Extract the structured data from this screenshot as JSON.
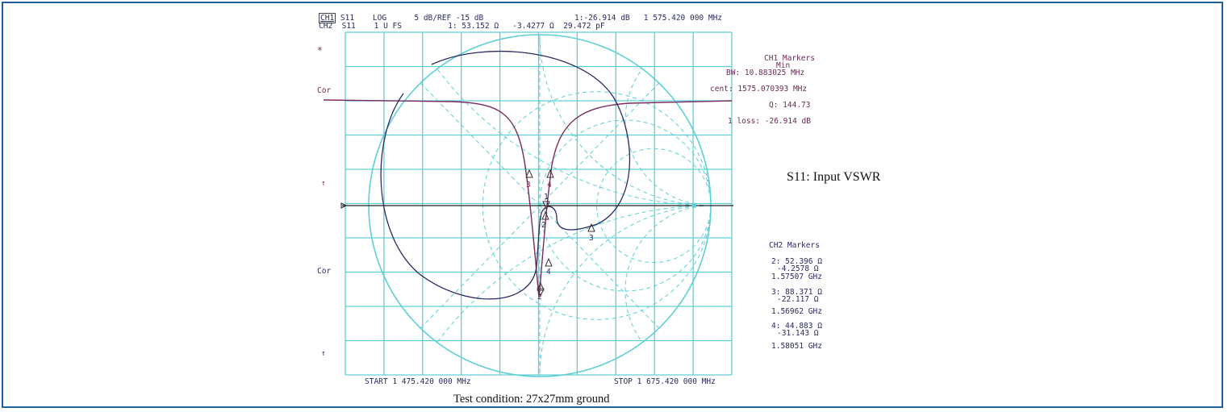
{
  "header": {
    "ch1": "CH1",
    "ch1_rest": " S11    LOG      5 dB/REF -15 dB",
    "ch1_marker": "1:-26.914 dB   1 575.420 000 MHz",
    "ch2_line": "CH2  S11    1 U FS          1: 53.152 Ω   -3.4277 Ω  29.472 pF"
  },
  "left_labels": {
    "star": "*",
    "cor1": "Cor",
    "arrow1": "↑",
    "cor2": "Cor",
    "arrow2": "↑"
  },
  "ch1_markers": {
    "title": "CH1 Markers",
    "subtitle": "Min",
    "bw": "BW: 10.883025 MHz",
    "cent": "cent: 1575.070393 MHz",
    "q": "Q: 144.73",
    "loss": "1 loss: -26.914 dB"
  },
  "ch2_markers": {
    "title": "CH2 Markers",
    "m2a": "2: 52.396 Ω",
    "m2b": "-4.2578 Ω",
    "m2c": "1.57507 GHz",
    "m3a": "3: 88.371 Ω",
    "m3b": "-22.117 Ω",
    "m3c": "1.56962 GHz",
    "m4a": "4: 44.883 Ω",
    "m4b": "-31.143 Ω",
    "m4c": "1.58051 GHz"
  },
  "footer": {
    "start": "START 1 475.420 000 MHz",
    "stop": "STOP 1 675.420 000 MHz"
  },
  "annotation": "S11: Input VSWR",
  "caption": "Test condition: 27x27mm ground",
  "marker_labels": {
    "m1": "1",
    "m2": "2",
    "m3": "3",
    "m4": "4"
  },
  "colors": {
    "frame": "#1f5f9a",
    "grid": "#5fcfd6",
    "smith": "#5fcfd6",
    "trace_log": "#7a2a60",
    "trace_smith": "#2a2a60",
    "axis": "#222222"
  },
  "chart_data": {
    "type": "line",
    "title": "",
    "series": [
      {
        "name": "CH1 S11 LOG",
        "x": [
          1475.42,
          1525.42,
          1555.42,
          1565.42,
          1570.42,
          1573.42,
          1575.42,
          1577.42,
          1580.42,
          1585.42,
          1595.42,
          1625.42,
          1675.42
        ],
        "y": [
          -0.9,
          -1.0,
          -1.8,
          -3.5,
          -6.5,
          -15.0,
          -26.914,
          -14.0,
          -6.0,
          -3.0,
          -1.6,
          -0.8,
          -0.6
        ]
      },
      {
        "name": "CH2 S11 Smith",
        "markers": [
          {
            "id": 1,
            "r": 53.152,
            "x": -3.4277
          },
          {
            "id": 2,
            "r": 52.396,
            "x": -4.2578,
            "f_GHz": 1.57507
          },
          {
            "id": 3,
            "r": 88.371,
            "x": -22.117,
            "f_GHz": 1.56962
          },
          {
            "id": 4,
            "r": 44.883,
            "x": -31.143,
            "f_GHz": 1.58051
          }
        ]
      }
    ],
    "xlabel": "",
    "ylabel": "",
    "xlim": [
      1475.42,
      1675.42
    ],
    "ylim": [
      -40,
      10
    ],
    "grid": true
  }
}
